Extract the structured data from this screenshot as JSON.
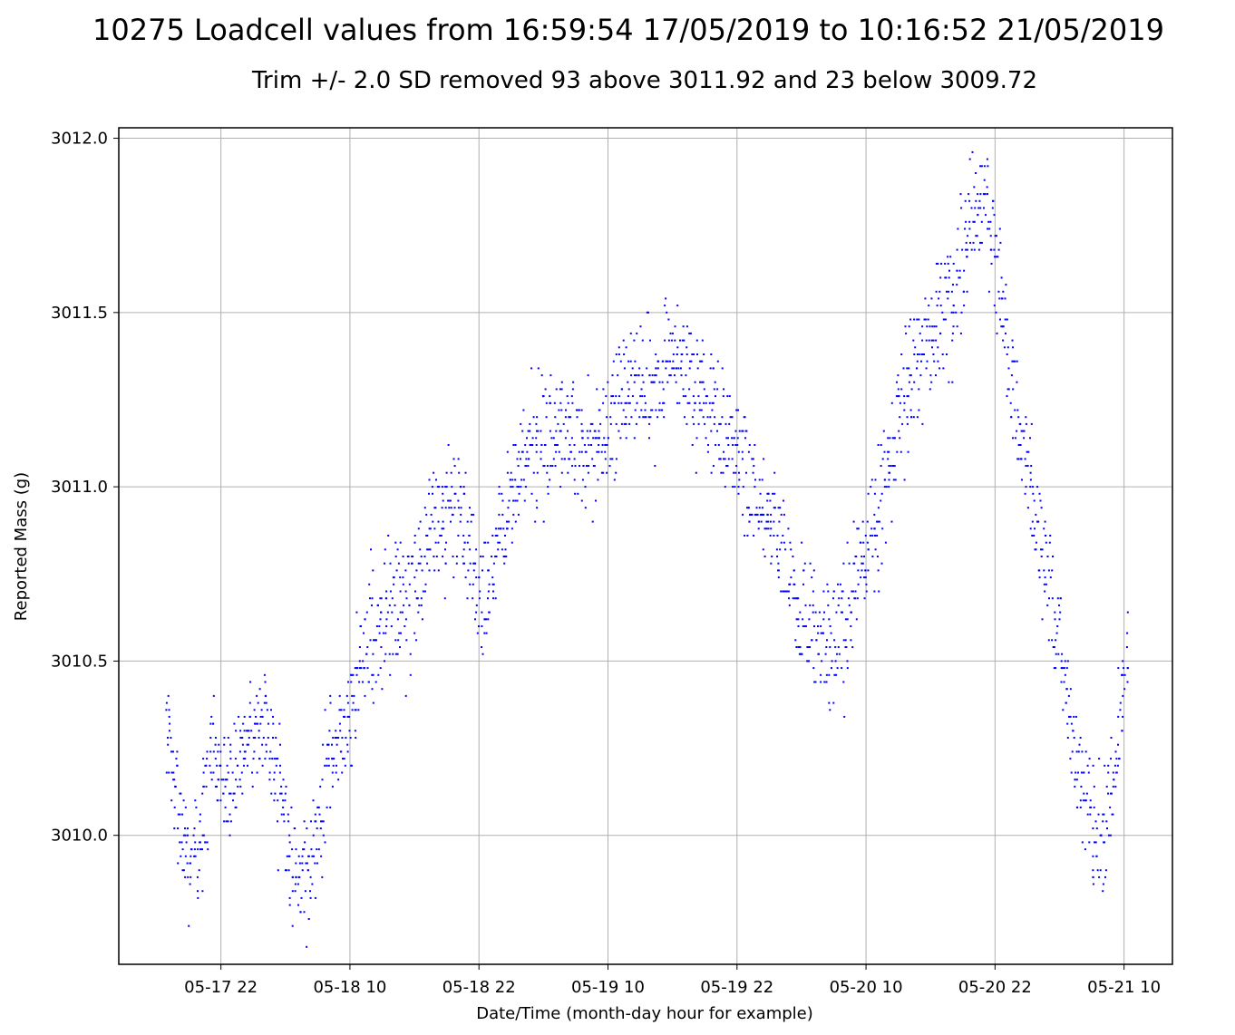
{
  "chart_data": {
    "type": "scatter",
    "title": "10275 Loadcell values from 16:59:54 17/05/2019 to 10:16:52 21/05/2019",
    "subtitle": "Trim +/- 2.0 SD removed 93 above 3011.92 and 23 below 3009.72",
    "xlabel": "Date/Time (month-day hour for example)",
    "ylabel": "Reported Mass (g)",
    "x_start": "2019-05-17 16:59:54",
    "x_end": "2019-05-21 10:16:52",
    "xlim": [
      "2019-05-17 12:30",
      "2019-05-21 14:30"
    ],
    "ylim": [
      3009.63,
      3012.03
    ],
    "yticks": [
      3010.0,
      3010.5,
      3011.0,
      3011.5,
      3012.0
    ],
    "ytick_labels": [
      "3010.0",
      "3010.5",
      "3011.0",
      "3011.5",
      "3012.0"
    ],
    "xticks": [
      "2019-05-17 22:00",
      "2019-05-18 10:00",
      "2019-05-18 22:00",
      "2019-05-19 10:00",
      "2019-05-19 22:00",
      "2019-05-20 10:00",
      "2019-05-20 22:00",
      "2019-05-21 10:00"
    ],
    "xtick_labels": [
      "05-17 22",
      "05-18 10",
      "05-18 22",
      "05-19 10",
      "05-19 22",
      "05-20 10",
      "05-20 22",
      "05-21 10"
    ],
    "grid": true,
    "marker_color": "#0000ff",
    "series": [
      {
        "x": [
          "2019-05-17 17:00",
          "2019-05-17 18:00",
          "2019-05-17 19:00",
          "2019-05-17 20:00",
          "2019-05-17 21:00",
          "2019-05-17 22:00",
          "2019-05-17 23:00",
          "2019-05-18 00:00",
          "2019-05-18 01:00",
          "2019-05-18 02:00",
          "2019-05-18 03:00",
          "2019-05-18 04:00",
          "2019-05-18 05:00",
          "2019-05-18 06:00",
          "2019-05-18 07:00",
          "2019-05-18 08:00",
          "2019-05-18 09:00",
          "2019-05-18 10:00",
          "2019-05-18 12:00",
          "2019-05-18 14:00",
          "2019-05-18 16:00",
          "2019-05-18 18:00",
          "2019-05-18 20:00",
          "2019-05-18 21:00",
          "2019-05-18 22:00",
          "2019-05-18 23:00",
          "2019-05-19 00:00",
          "2019-05-19 02:00",
          "2019-05-19 04:00",
          "2019-05-19 06:00",
          "2019-05-19 08:00",
          "2019-05-19 10:00",
          "2019-05-19 12:00",
          "2019-05-19 14:00",
          "2019-05-19 16:00",
          "2019-05-19 18:00",
          "2019-05-19 20:00",
          "2019-05-19 22:00",
          "2019-05-20 00:00",
          "2019-05-20 02:00",
          "2019-05-20 04:00",
          "2019-05-20 06:00",
          "2019-05-20 08:00",
          "2019-05-20 10:00",
          "2019-05-20 12:00",
          "2019-05-20 14:00",
          "2019-05-20 16:00",
          "2019-05-20 18:00",
          "2019-05-20 20:00",
          "2019-05-20 21:00",
          "2019-05-20 22:00",
          "2019-05-21 00:00",
          "2019-05-21 02:00",
          "2019-05-21 04:00",
          "2019-05-21 06:00",
          "2019-05-21 08:00",
          "2019-05-21 09:00",
          "2019-05-21 10:00"
        ],
        "y": [
          3010.35,
          3010.05,
          3009.95,
          3009.95,
          3010.25,
          3010.15,
          3010.15,
          3010.25,
          3010.3,
          3010.3,
          3010.2,
          3010.05,
          3009.9,
          3009.9,
          3010.0,
          3010.2,
          3010.25,
          3010.35,
          3010.6,
          3010.65,
          3010.7,
          3010.9,
          3010.95,
          3010.85,
          3010.65,
          3010.75,
          3010.85,
          3011.05,
          3011.15,
          3011.15,
          3011.1,
          3011.15,
          3011.3,
          3011.3,
          3011.35,
          3011.3,
          3011.2,
          3011.1,
          3010.95,
          3010.8,
          3010.65,
          3010.55,
          3010.6,
          3010.8,
          3011.05,
          3011.3,
          3011.45,
          3011.55,
          3011.75,
          3011.85,
          3011.65,
          3011.2,
          3010.9,
          3010.55,
          3010.15,
          3009.95,
          3010.15,
          3010.45
        ]
      }
    ]
  }
}
